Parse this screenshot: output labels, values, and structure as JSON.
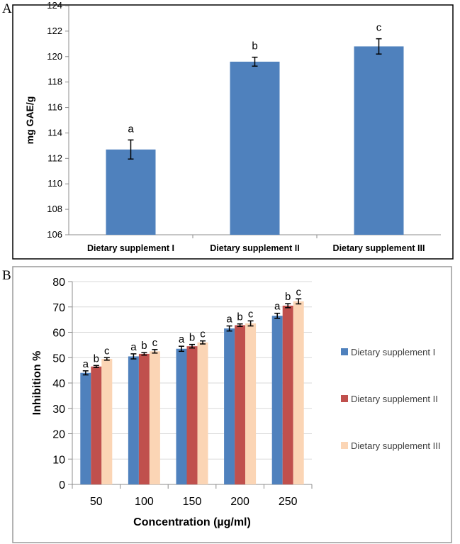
{
  "panels": {
    "a_label": "A",
    "b_label": "B"
  },
  "colors": {
    "series_a": "#4f81bd",
    "series_1": "#4f81bd",
    "series_2": "#c0504d",
    "series_3": "#fbd5b5",
    "grid": "#d9d9d9",
    "axis": "#8c8c8c",
    "border": "#000000",
    "outer_border": "#9a9a9a"
  },
  "chart_data": [
    {
      "type": "bar",
      "title": "",
      "xlabel": "",
      "ylabel": "mg GAE/g",
      "ylim": [
        106,
        124
      ],
      "yticks": [
        "106",
        "108",
        "110",
        "112",
        "114",
        "116",
        "118",
        "120",
        "122",
        "124"
      ],
      "grid": false,
      "categories": [
        "Dietary supplement I",
        "Dietary supplement II",
        "Dietary supplement III"
      ],
      "values": [
        112.7,
        119.6,
        120.8
      ],
      "errors": [
        0.75,
        0.35,
        0.6
      ],
      "annotations": [
        "a",
        "b",
        "c"
      ]
    },
    {
      "type": "bar",
      "title": "",
      "xlabel": "Concentration (µg/ml)",
      "ylabel": "Inhibition %",
      "ylim": [
        0,
        80
      ],
      "yticks": [
        "0",
        "10",
        "20",
        "30",
        "40",
        "50",
        "60",
        "70",
        "80"
      ],
      "grid": true,
      "categories": [
        "50",
        "100",
        "150",
        "200",
        "250"
      ],
      "legend_position": "right",
      "series": [
        {
          "name": "Dietary supplement I",
          "values": [
            44.0,
            50.5,
            53.5,
            61.5,
            66.5
          ],
          "errors": [
            0.8,
            1.0,
            1.0,
            1.0,
            1.0
          ],
          "annotation": "a"
        },
        {
          "name": "Dietary supplement II",
          "values": [
            46.5,
            51.5,
            54.5,
            62.8,
            70.5
          ],
          "errors": [
            0.4,
            0.5,
            0.7,
            0.5,
            0.8
          ],
          "annotation": "b"
        },
        {
          "name": "Dietary supplement III",
          "values": [
            49.5,
            52.5,
            56.0,
            63.5,
            72.2
          ],
          "errors": [
            0.5,
            0.7,
            0.6,
            1.0,
            1.0
          ],
          "annotation": "c"
        }
      ]
    }
  ]
}
